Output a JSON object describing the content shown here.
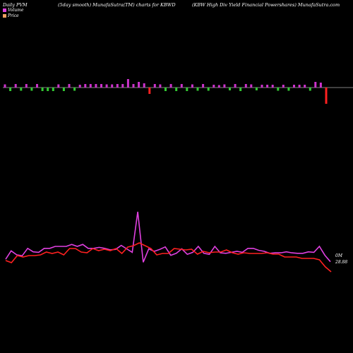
{
  "header": {
    "left": "Daily PVM",
    "middle": "(5day smooth) MunafaSutra(TM) charts for KBWD",
    "right": "(KBW High Div  Yield Financial Powershares) MunafaSutra.com"
  },
  "legend": {
    "volume_label": "Volume",
    "price_label": "Price",
    "volume_color": "#e040e0",
    "price_color": "#f0a060"
  },
  "readouts": {
    "volume": "0M",
    "price": "28.88"
  },
  "colors": {
    "background": "#000000",
    "volume_line": "#e040e0",
    "price_line": "#ff2020",
    "bar_up": "#cc33cc",
    "bar_down": "#33cc33",
    "bar_last": "#ff2020",
    "baseline": "#ffffff"
  },
  "chart_data": {
    "type": "line",
    "title": "Daily PVM (5day smooth) MunafaSutra(TM) charts for KBWD",
    "grid": false,
    "notes_visible": "no axes or tick labels are printed",
    "bars": {
      "description": "per-session bars around a baseline; positive above, negative below",
      "values": [
        0.9,
        -1,
        1,
        -0.9,
        1,
        -0.9,
        1,
        -1,
        -1,
        -1,
        0.9,
        -1,
        1,
        -0.9,
        0.8,
        1,
        1,
        1,
        1,
        0.9,
        0.9,
        1,
        1,
        2.4,
        1,
        1.6,
        1.2,
        -1.8,
        1,
        0.9,
        -1,
        1,
        -1,
        1,
        -1,
        0.9,
        -0.9,
        1,
        -0.9,
        0.8,
        0.7,
        0.9,
        -0.8,
        1,
        -1,
        1,
        0.9,
        -0.8,
        0.8,
        0.8,
        0.8,
        -0.9,
        0.8,
        -0.9,
        0.8,
        0.8,
        0.8,
        -0.9,
        1.6,
        1.4,
        -4.6
      ],
      "colors": [
        "up",
        "down",
        "up",
        "down",
        "up",
        "down",
        "up",
        "down",
        "down",
        "down",
        "up",
        "down",
        "up",
        "down",
        "up",
        "up",
        "up",
        "up",
        "up",
        "up",
        "up",
        "up",
        "up",
        "up",
        "up",
        "up",
        "up",
        "last",
        "up",
        "up",
        "down",
        "up",
        "down",
        "up",
        "down",
        "up",
        "down",
        "up",
        "down",
        "up",
        "up",
        "up",
        "down",
        "up",
        "down",
        "up",
        "up",
        "down",
        "up",
        "up",
        "up",
        "down",
        "up",
        "down",
        "up",
        "up",
        "up",
        "down",
        "up",
        "up",
        "last"
      ]
    },
    "series": [
      {
        "values": [
          14,
          31,
          23,
          21,
          36,
          29,
          28,
          36,
          36,
          40,
          40,
          40,
          44,
          40,
          44,
          36,
          36,
          38,
          36,
          33,
          34,
          42,
          35,
          28,
          8,
          35,
          30,
          34,
          39,
          22,
          26,
          35,
          24,
          28,
          40,
          26,
          24,
          40,
          27,
          26,
          28,
          30,
          28,
          36,
          36,
          32,
          30,
          26,
          27,
          27,
          29,
          27,
          26,
          26,
          29,
          28,
          40,
          22,
          9
        ]
      },
      {
        "values": [
          19,
          16,
          26,
          24,
          26,
          26,
          27,
          31,
          29,
          31,
          27,
          36,
          36,
          31,
          30,
          36,
          33,
          35,
          33,
          36,
          29,
          38,
          40,
          44,
          40,
          36,
          27,
          29,
          29,
          36,
          35,
          34,
          35,
          28,
          32,
          30,
          31,
          31,
          34,
          30,
          28,
          30,
          29,
          29,
          29,
          30,
          28,
          28,
          24,
          24,
          24,
          22,
          22,
          22,
          20,
          10,
          3
        ]
      }
    ]
  }
}
